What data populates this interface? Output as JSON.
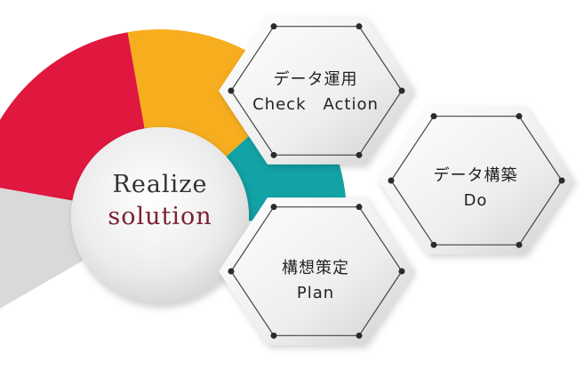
{
  "center": {
    "line1": "Realize",
    "line2": "solution"
  },
  "hexagons": [
    {
      "id": "top",
      "title": "データ運用",
      "subtitle": "Check　Action"
    },
    {
      "id": "right",
      "title": "データ構築",
      "subtitle": "Do"
    },
    {
      "id": "bottom",
      "title": "構想策定",
      "subtitle": "Plan"
    }
  ],
  "ring_segments": [
    {
      "name": "teal",
      "color": "#12a3a6",
      "from_deg": -42,
      "to_deg": 3
    },
    {
      "name": "yellow",
      "color": "#f6ae1f",
      "from_deg": -100,
      "to_deg": -42
    },
    {
      "name": "red",
      "color": "#e0173f",
      "from_deg": -170,
      "to_deg": -100
    },
    {
      "name": "gray",
      "color": "#d9d9d9",
      "from_deg": 150,
      "to_deg": 190
    }
  ],
  "colors": {
    "hex_fill_light": "#f6f6f6",
    "hex_fill_dark": "#d4d4d4",
    "dot": "#2b2b2b"
  }
}
